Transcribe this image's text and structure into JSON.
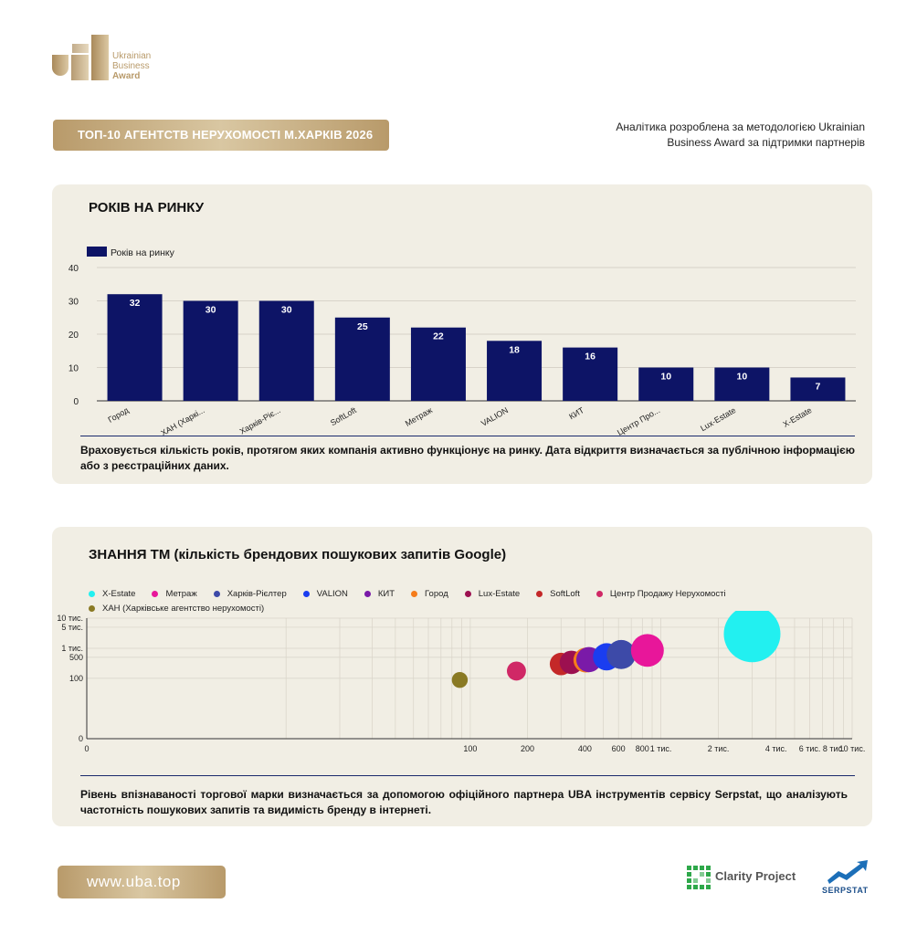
{
  "logo": {
    "line1": "Ukrainian",
    "line2": "Business",
    "line3": "Award"
  },
  "banner": {
    "title": "ТОП-10 АГЕНТСТВ НЕРУХОМОСТІ М.ХАРКІВ 2026"
  },
  "note": {
    "text": "Аналітика розроблена за методологією Ukrainian Business Award за підтримки партнерів"
  },
  "years_card": {
    "title": "РОКІВ НА РИНКУ",
    "description": "Враховується кількість років, протягом яких компанія активно функціонує на ринку. Дата відкриття визначається за публічною інформацією або з реєстраційних даних."
  },
  "brand_card": {
    "title": "ЗНАННЯ ТМ (кількість брендових пошукових запитів Google)",
    "description": "Рівень впізнаваності торгової марки визначається за допомогою офіційного партнера UBA інструментів сервісу Serpstat, що аналізують частотність пошукових запитів та видимість бренду в інтернеті."
  },
  "footer": {
    "url": "www.uba.top",
    "partner1": "Clarity Project",
    "partner2": "SERPSTAT"
  },
  "colors": {
    "bar": "#0d1466",
    "gold": "#b89a6a",
    "card": "#f1eee4"
  },
  "chart_data": [
    {
      "type": "bar",
      "legend": "Років на ринку",
      "legend_position": "top-left",
      "categories": [
        "Город",
        "ХАН (Харкі...",
        "Харків-Ріє...",
        "SoftLoft",
        "Метраж",
        "VALION",
        "КИТ",
        "Центр Про...",
        "Lux-Estate",
        "X-Estate"
      ],
      "series": [
        {
          "name": "Років на ринку",
          "values": [
            32,
            30,
            30,
            25,
            22,
            18,
            16,
            10,
            10,
            7
          ]
        }
      ],
      "ylim": [
        0,
        40
      ],
      "yticks": [
        "0",
        "10",
        "20",
        "30",
        "40"
      ],
      "grid": true
    },
    {
      "type": "scatter",
      "subtype": "bubble",
      "scale": "log",
      "xticks": [
        "0",
        "100",
        "200",
        "400",
        "600",
        "800",
        "1 тис.",
        "2 тис.",
        "4 тис.",
        "6 тис.",
        "8 тис.",
        "10 тис."
      ],
      "yticks": [
        "0",
        "100",
        "500",
        "1 тис.",
        "5 тис.",
        "10 тис."
      ],
      "grid": true,
      "legend_position": "top",
      "series": [
        {
          "name": "X-Estate",
          "color": "#22f0f0",
          "x": 3000,
          "y": 3000
        },
        {
          "name": "Метраж",
          "color": "#e8169a",
          "x": 850,
          "y": 850
        },
        {
          "name": "Харків-Рієлтер",
          "color": "#3d4aa8",
          "x": 620,
          "y": 620
        },
        {
          "name": "VALION",
          "color": "#1a3df0",
          "x": 520,
          "y": 520
        },
        {
          "name": "КИТ",
          "color": "#7a1aa8",
          "x": 420,
          "y": 420
        },
        {
          "name": "Город",
          "color": "#f57c1a",
          "x": 405,
          "y": 405
        },
        {
          "name": "Lux-Estate",
          "color": "#9c1050",
          "x": 340,
          "y": 340
        },
        {
          "name": "SoftLoft",
          "color": "#c42828",
          "x": 300,
          "y": 300
        },
        {
          "name": "Центр Продажу Нерухомості",
          "color": "#d02866",
          "x": 175,
          "y": 175
        },
        {
          "name": "ХАН (Харківське агентство нерухомості)",
          "color": "#8a7a24",
          "x": 88,
          "y": 88
        }
      ]
    }
  ]
}
